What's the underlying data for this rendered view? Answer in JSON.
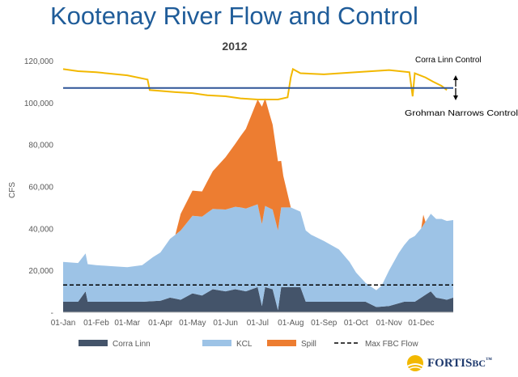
{
  "slide": {
    "title": "Kootenay River Flow and Control",
    "logo_text": "FORTIS",
    "logo_suffix": "BC",
    "logo_mark": "™"
  },
  "colors": {
    "title": "#1f5c99",
    "corra_linn": "#44546a",
    "kcl": "#9dc3e6",
    "spill": "#ed7d31",
    "elevation_line": "#f2b800",
    "control_line": "#2f5597",
    "max_flow": "#000000",
    "axis_text": "#595959"
  },
  "chart_data": {
    "type": "area",
    "title": "2012",
    "ylabel": "CFS",
    "ylim": [
      0,
      120000
    ],
    "yticks": [
      0,
      20000,
      40000,
      60000,
      80000,
      100000,
      120000
    ],
    "ytick_labels": [
      "-",
      "20,000",
      "40,000",
      "60,000",
      "80,000",
      "100,000",
      "120,000"
    ],
    "xlim": [
      "2012-01-01",
      "2012-12-31"
    ],
    "xtick_labels": [
      "01-Jan",
      "01-Feb",
      "01-Mar",
      "01-Apr",
      "01-May",
      "01-Jun",
      "01-Jul",
      "01-Aug",
      "01-Sep",
      "01-Oct",
      "01-Nov",
      "01-Dec"
    ],
    "xtick_dates": [
      "2012-01-01",
      "2012-02-01",
      "2012-03-01",
      "2012-04-01",
      "2012-05-01",
      "2012-06-01",
      "2012-07-01",
      "2012-08-01",
      "2012-09-01",
      "2012-10-01",
      "2012-11-01",
      "2012-12-01"
    ],
    "legend_position": "bottom",
    "series": [
      {
        "name": "Corra Linn",
        "stack": "flow",
        "points": [
          [
            "2012-01-01",
            5000
          ],
          [
            "2012-01-15",
            5000
          ],
          [
            "2012-01-22",
            10000
          ],
          [
            "2012-01-24",
            5000
          ],
          [
            "2012-02-15",
            5000
          ],
          [
            "2012-03-01",
            5000
          ],
          [
            "2012-03-15",
            5000
          ],
          [
            "2012-04-01",
            5500
          ],
          [
            "2012-04-10",
            7000
          ],
          [
            "2012-04-20",
            6000
          ],
          [
            "2012-05-01",
            9000
          ],
          [
            "2012-05-10",
            8000
          ],
          [
            "2012-05-20",
            11000
          ],
          [
            "2012-06-01",
            10000
          ],
          [
            "2012-06-10",
            11000
          ],
          [
            "2012-06-20",
            10000
          ],
          [
            "2012-07-01",
            12000
          ],
          [
            "2012-07-05",
            3000
          ],
          [
            "2012-07-08",
            12000
          ],
          [
            "2012-07-15",
            11000
          ],
          [
            "2012-07-20",
            1000
          ],
          [
            "2012-07-23",
            12000
          ],
          [
            "2012-08-01",
            12000
          ],
          [
            "2012-08-10",
            12000
          ],
          [
            "2012-08-15",
            5000
          ],
          [
            "2012-09-15",
            5000
          ],
          [
            "2012-10-01",
            5000
          ],
          [
            "2012-10-10",
            5000
          ],
          [
            "2012-10-20",
            2500
          ],
          [
            "2012-11-01",
            3000
          ],
          [
            "2012-11-15",
            5000
          ],
          [
            "2012-11-25",
            5000
          ],
          [
            "2012-12-01",
            7000
          ],
          [
            "2012-12-10",
            10000
          ],
          [
            "2012-12-15",
            7000
          ],
          [
            "2012-12-25",
            6000
          ],
          [
            "2012-12-31",
            7000
          ]
        ]
      },
      {
        "name": "KCL",
        "stack": "flow",
        "points": [
          [
            "2012-01-01",
            19000
          ],
          [
            "2012-01-15",
            18500
          ],
          [
            "2012-02-01",
            17500
          ],
          [
            "2012-02-15",
            17000
          ],
          [
            "2012-03-01",
            16500
          ],
          [
            "2012-03-15",
            17500
          ],
          [
            "2012-03-25",
            21000
          ],
          [
            "2012-04-01",
            23000
          ],
          [
            "2012-04-10",
            28000
          ],
          [
            "2012-04-20",
            33000
          ],
          [
            "2012-05-01",
            37000
          ],
          [
            "2012-05-15",
            38000
          ],
          [
            "2012-06-01",
            39000
          ],
          [
            "2012-06-15",
            39500
          ],
          [
            "2012-07-01",
            39500
          ],
          [
            "2012-07-15",
            38000
          ],
          [
            "2012-08-01",
            38000
          ],
          [
            "2012-08-10",
            36000
          ],
          [
            "2012-08-20",
            32000
          ],
          [
            "2012-09-01",
            29000
          ],
          [
            "2012-09-15",
            25000
          ],
          [
            "2012-09-25",
            19000
          ],
          [
            "2012-10-01",
            14000
          ],
          [
            "2012-10-10",
            9000
          ],
          [
            "2012-10-20",
            8000
          ],
          [
            "2012-10-25",
            10000
          ],
          [
            "2012-11-01",
            17000
          ],
          [
            "2012-11-10",
            24000
          ],
          [
            "2012-11-20",
            30000
          ],
          [
            "2012-12-01",
            33000
          ],
          [
            "2012-12-10",
            37000
          ],
          [
            "2012-12-20",
            38000
          ],
          [
            "2012-12-31",
            37000
          ]
        ]
      },
      {
        "name": "Spill",
        "stack": "flow",
        "points": [
          [
            "2012-01-01",
            0
          ],
          [
            "2012-04-15",
            0
          ],
          [
            "2012-04-20",
            8000
          ],
          [
            "2012-05-01",
            12000
          ],
          [
            "2012-05-10",
            12000
          ],
          [
            "2012-05-20",
            18000
          ],
          [
            "2012-06-01",
            25000
          ],
          [
            "2012-06-10",
            30000
          ],
          [
            "2012-06-20",
            38000
          ],
          [
            "2012-07-01",
            50000
          ],
          [
            "2012-07-05",
            56000
          ],
          [
            "2012-07-12",
            45000
          ],
          [
            "2012-07-20",
            33000
          ],
          [
            "2012-07-25",
            15000
          ],
          [
            "2012-08-01",
            0
          ],
          [
            "2012-12-01",
            0
          ],
          [
            "2012-12-03",
            5000
          ],
          [
            "2012-12-05",
            0
          ],
          [
            "2012-12-31",
            0
          ]
        ]
      },
      {
        "name": "Max FBC Flow",
        "style": "dashed",
        "points": [
          [
            "2012-01-01",
            13000
          ],
          [
            "2012-12-31",
            13000
          ]
        ]
      },
      {
        "name": "Lake elevation",
        "style": "line",
        "points": [
          [
            "2012-01-01",
            116000
          ],
          [
            "2012-01-15",
            115000
          ],
          [
            "2012-02-01",
            114500
          ],
          [
            "2012-03-01",
            113000
          ],
          [
            "2012-03-20",
            111000
          ],
          [
            "2012-03-22",
            106000
          ],
          [
            "2012-04-15",
            105000
          ],
          [
            "2012-05-01",
            104500
          ],
          [
            "2012-05-15",
            103500
          ],
          [
            "2012-06-01",
            103000
          ],
          [
            "2012-06-15",
            102000
          ],
          [
            "2012-07-01",
            101500
          ],
          [
            "2012-07-20",
            101500
          ],
          [
            "2012-07-29",
            102500
          ],
          [
            "2012-08-01",
            112000
          ],
          [
            "2012-08-03",
            116000
          ],
          [
            "2012-08-10",
            114000
          ],
          [
            "2012-09-01",
            113500
          ],
          [
            "2012-10-01",
            114500
          ],
          [
            "2012-11-01",
            115500
          ],
          [
            "2012-11-20",
            114500
          ],
          [
            "2012-11-23",
            103000
          ],
          [
            "2012-11-25",
            114000
          ],
          [
            "2012-12-05",
            112000
          ],
          [
            "2012-12-12",
            110000
          ],
          [
            "2012-12-20",
            108000
          ],
          [
            "2012-12-25",
            106000
          ]
        ]
      },
      {
        "name": "Control level",
        "style": "line",
        "points": [
          [
            "2012-01-01",
            107000
          ],
          [
            "2012-12-31",
            107000
          ]
        ]
      }
    ],
    "annotations": [
      {
        "text": "Corra Linn Control",
        "arrow": "up"
      },
      {
        "text": "Grohman Narrows Control",
        "arrow": "down"
      }
    ]
  }
}
